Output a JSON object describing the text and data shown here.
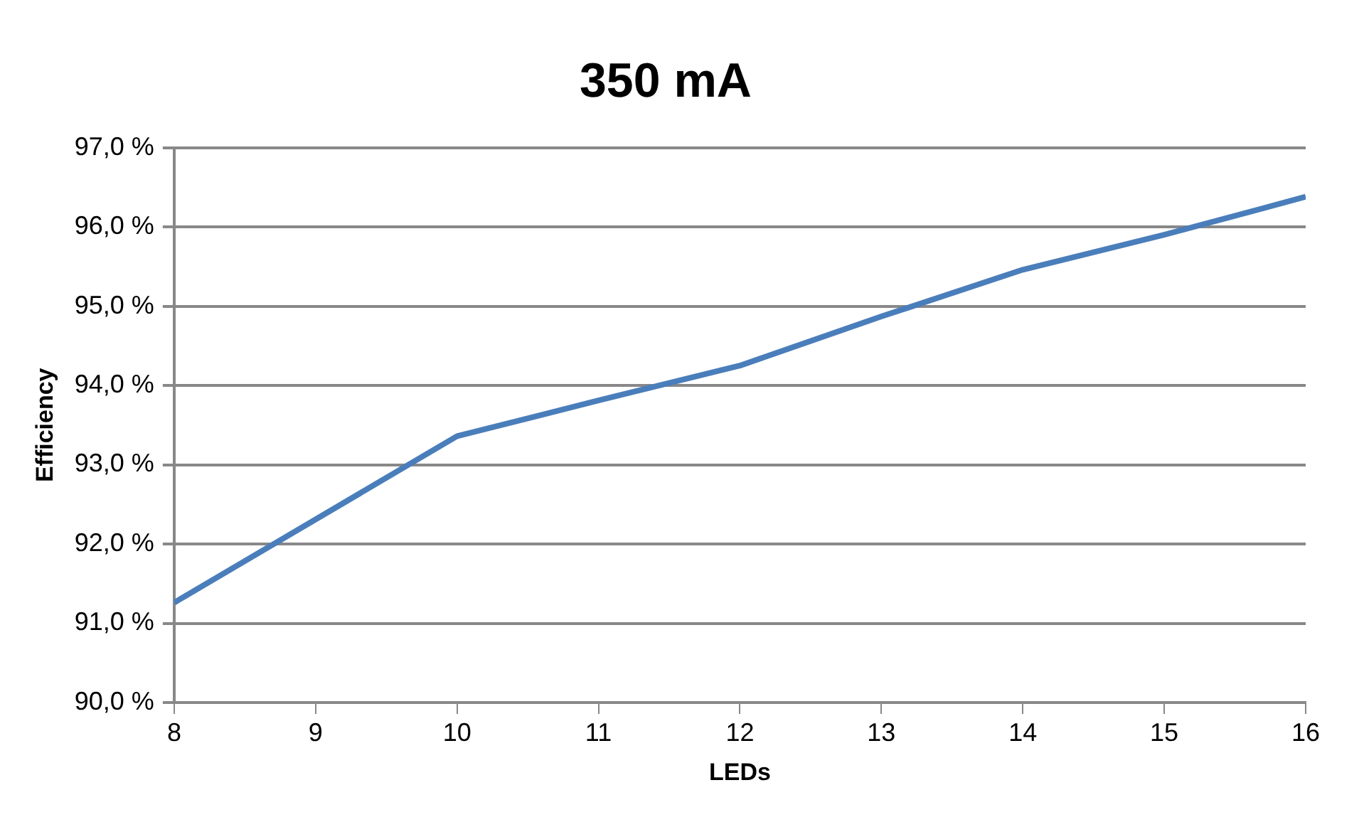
{
  "chart_data": {
    "type": "line",
    "title": "350 mA",
    "xlabel": "LEDs",
    "ylabel": "Efficiency",
    "x": [
      8,
      10,
      11,
      12,
      13,
      14,
      15,
      16
    ],
    "series": [
      {
        "color": "#4a7ebb",
        "values": [
          91.26,
          93.36,
          93.81,
          94.25,
          94.87,
          95.46,
          95.9,
          96.38
        ]
      }
    ],
    "xlim": [
      8,
      16
    ],
    "xticks": [
      8,
      9,
      10,
      11,
      12,
      13,
      14,
      15,
      16
    ],
    "ylim": [
      90,
      97
    ],
    "yticks": [
      {
        "value": 90,
        "label": "90,0 %"
      },
      {
        "value": 91,
        "label": "91,0 %"
      },
      {
        "value": 92,
        "label": "92,0 %"
      },
      {
        "value": 93,
        "label": "93,0 %"
      },
      {
        "value": 94,
        "label": "94,0 %"
      },
      {
        "value": 95,
        "label": "95,0 %"
      },
      {
        "value": 96,
        "label": "96,0 %"
      },
      {
        "value": 97,
        "label": "97,0 %"
      }
    ],
    "grid": "y",
    "legend": false,
    "marker": "none",
    "line_style": "solid"
  }
}
